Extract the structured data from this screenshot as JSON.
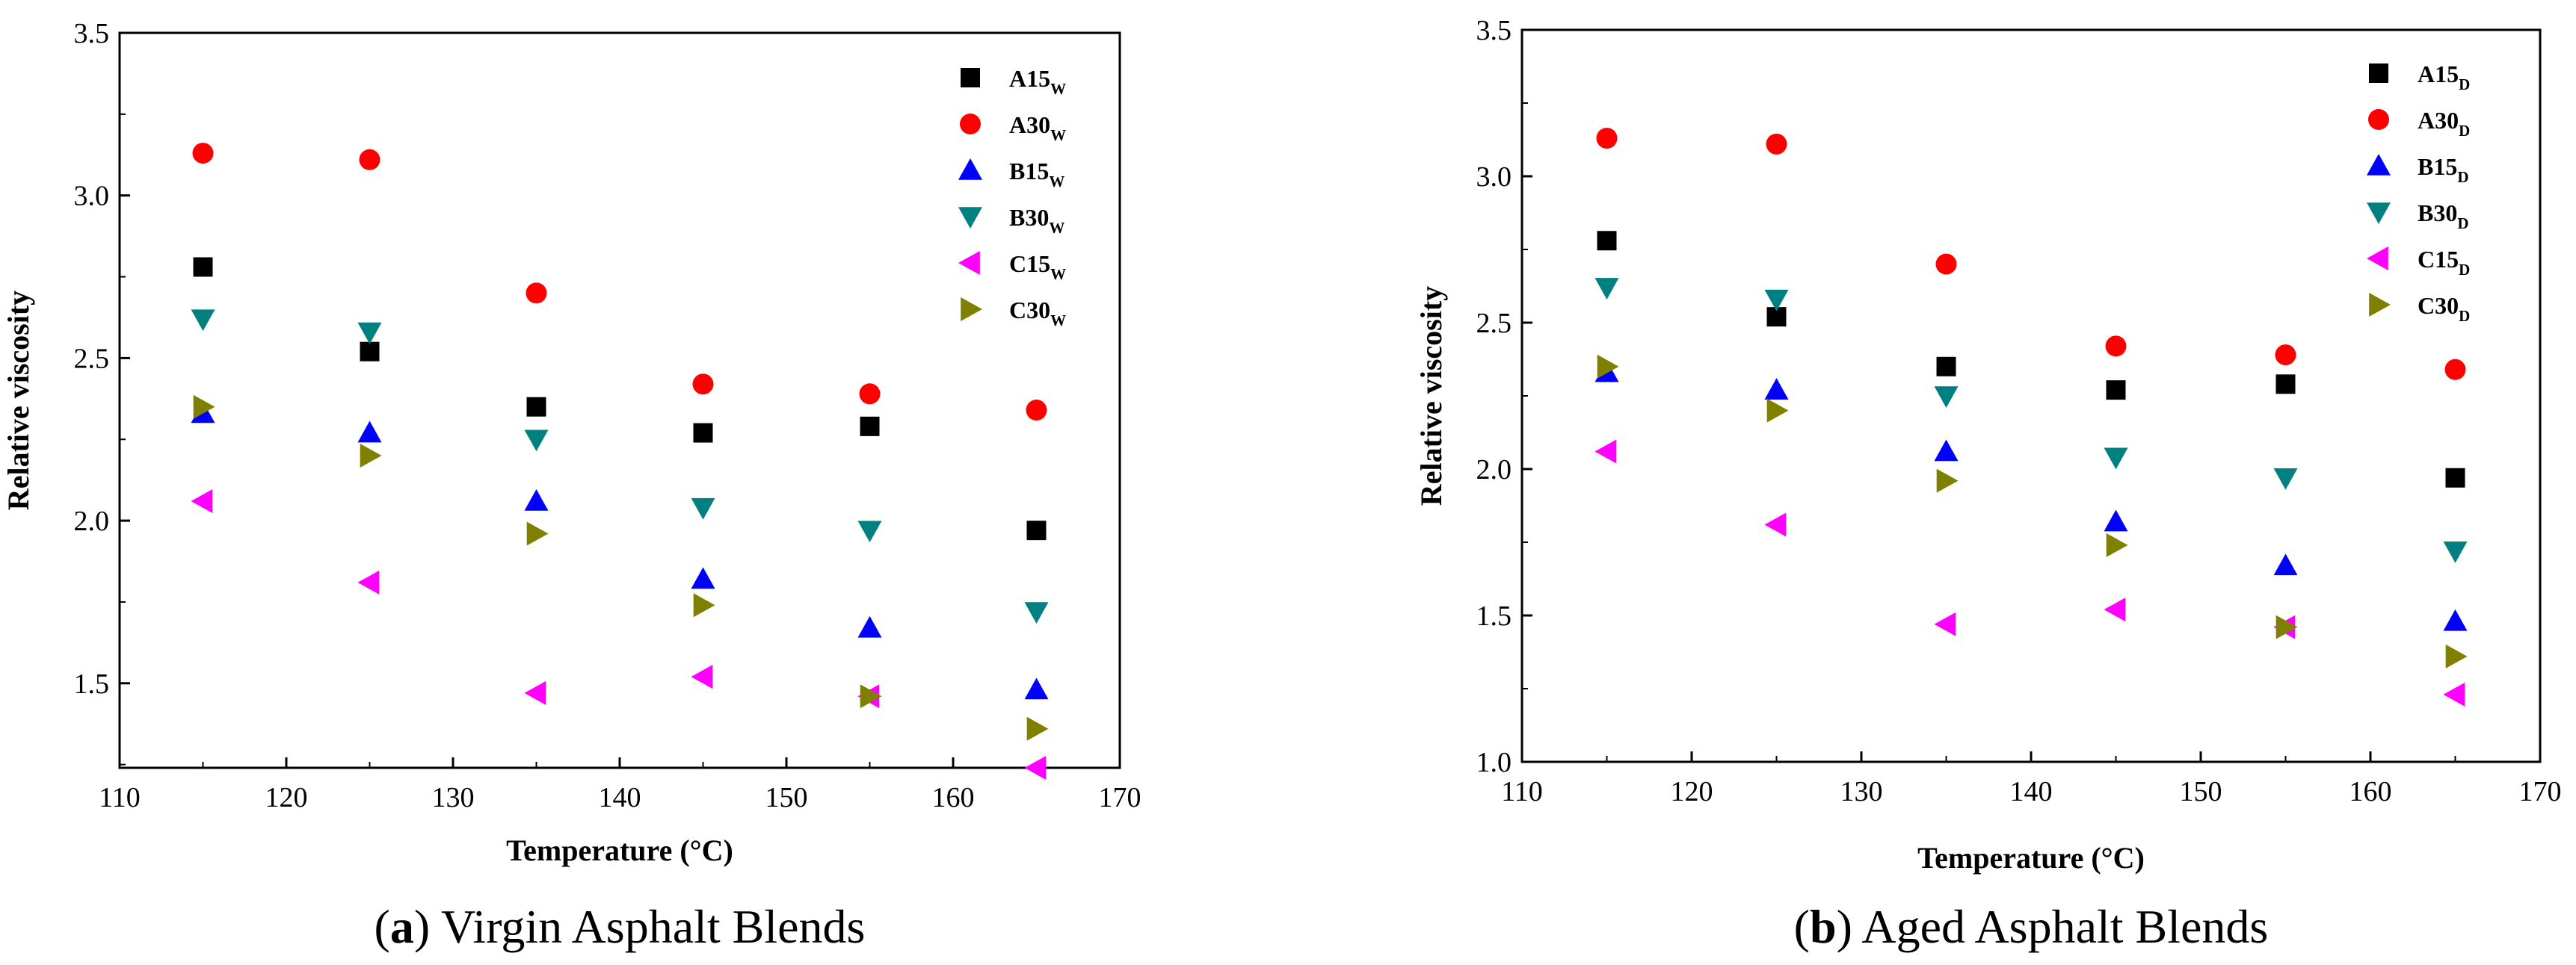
{
  "chart_data": [
    {
      "type": "scatter",
      "caption_letter": "a",
      "caption_text": "Virgin Asphalt Blends",
      "xlabel": "Temperature (°C)",
      "ylabel": "Relative viscosity",
      "xlim": [
        110,
        170
      ],
      "ylim": [
        1.24,
        3.5
      ],
      "xticks": [
        "110",
        "120",
        "130",
        "140",
        "150",
        "160",
        "170"
      ],
      "yticks": [
        "1.5",
        "2.0",
        "2.5",
        "3.0",
        "3.5"
      ],
      "x": [
        115,
        125,
        135,
        145,
        155,
        165
      ],
      "series": [
        {
          "name": "A15",
          "sub": "W",
          "marker": "square",
          "color": "#000000",
          "values": [
            2.78,
            2.52,
            2.35,
            2.27,
            2.29,
            1.97
          ]
        },
        {
          "name": "A30",
          "sub": "W",
          "marker": "circle",
          "color": "#ff0000",
          "values": [
            3.13,
            3.11,
            2.7,
            2.42,
            2.39,
            2.34
          ]
        },
        {
          "name": "B15",
          "sub": "W",
          "marker": "triangle-up",
          "color": "#0000ff",
          "values": [
            2.33,
            2.27,
            2.06,
            1.82,
            1.67,
            1.48
          ]
        },
        {
          "name": "B30",
          "sub": "W",
          "marker": "triangle-down",
          "color": "#008080",
          "values": [
            2.62,
            2.58,
            2.25,
            2.04,
            1.97,
            1.72
          ]
        },
        {
          "name": "C15",
          "sub": "W",
          "marker": "triangle-left",
          "color": "#ff00ff",
          "values": [
            2.06,
            1.81,
            1.47,
            1.52,
            1.46,
            1.24
          ]
        },
        {
          "name": "C30",
          "sub": "W",
          "marker": "triangle-right",
          "color": "#808000",
          "values": [
            2.35,
            2.2,
            1.96,
            1.74,
            1.46,
            1.36
          ]
        }
      ]
    },
    {
      "type": "scatter",
      "caption_letter": "b",
      "caption_text": "Aged Asphalt Blends",
      "xlabel": "Temperature (°C)",
      "ylabel": "Relative viscosity",
      "xlim": [
        110,
        170
      ],
      "ylim": [
        1.0,
        3.5
      ],
      "xticks": [
        "110",
        "120",
        "130",
        "140",
        "150",
        "160",
        "170"
      ],
      "yticks": [
        "1.0",
        "1.5",
        "2.0",
        "2.5",
        "3.0",
        "3.5"
      ],
      "x": [
        115,
        125,
        135,
        145,
        155,
        165
      ],
      "series": [
        {
          "name": "A15",
          "sub": "D",
          "marker": "square",
          "color": "#000000",
          "values": [
            2.78,
            2.52,
            2.35,
            2.27,
            2.29,
            1.97
          ]
        },
        {
          "name": "A30",
          "sub": "D",
          "marker": "circle",
          "color": "#ff0000",
          "values": [
            3.13,
            3.11,
            2.7,
            2.42,
            2.39,
            2.34
          ]
        },
        {
          "name": "B15",
          "sub": "D",
          "marker": "triangle-up",
          "color": "#0000ff",
          "values": [
            2.33,
            2.27,
            2.06,
            1.82,
            1.67,
            1.48
          ]
        },
        {
          "name": "B30",
          "sub": "D",
          "marker": "triangle-down",
          "color": "#008080",
          "values": [
            2.62,
            2.58,
            2.25,
            2.04,
            1.97,
            1.72
          ]
        },
        {
          "name": "C15",
          "sub": "D",
          "marker": "triangle-left",
          "color": "#ff00ff",
          "values": [
            2.06,
            1.81,
            1.47,
            1.52,
            1.46,
            1.23
          ]
        },
        {
          "name": "C30",
          "sub": "D",
          "marker": "triangle-right",
          "color": "#808000",
          "values": [
            2.35,
            2.2,
            1.96,
            1.74,
            1.46,
            1.36
          ]
        }
      ]
    }
  ]
}
